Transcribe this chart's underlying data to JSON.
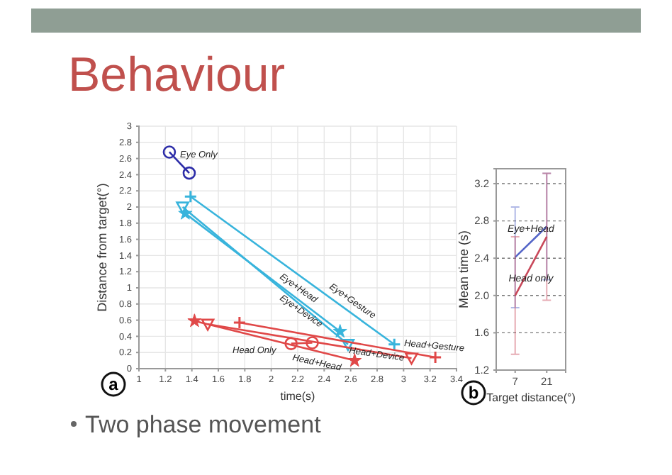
{
  "chart_data": [
    {
      "type": "line",
      "title": "Behaviour",
      "xlabel": "time(s)",
      "ylabel": "Distance from target(°)",
      "xlim": [
        1,
        3.4
      ],
      "xticks": [
        1,
        1.2,
        1.4,
        1.6,
        1.8,
        2,
        2.2,
        2.4,
        2.6,
        2.8,
        3,
        3.2,
        3.4
      ],
      "ylim": [
        0,
        3
      ],
      "yticks": [
        0,
        0.2,
        0.4,
        0.6,
        0.8,
        1,
        1.2,
        1.4,
        1.6,
        1.8,
        2,
        2.2,
        2.4,
        2.6,
        2.8,
        3
      ],
      "grid": true,
      "series": [
        {
          "color": "#2c2ca8",
          "marker": "circle",
          "x": [
            1.23,
            1.38
          ],
          "values": [
            2.68,
            2.42
          ]
        },
        {
          "color": "#38b4dc",
          "marker": "star",
          "x": [
            1.35,
            2.52
          ],
          "values": [
            1.92,
            0.46
          ]
        },
        {
          "color": "#38b4dc",
          "marker": "triangle",
          "x": [
            1.33,
            2.58
          ],
          "values": [
            2.0,
            0.3
          ]
        },
        {
          "color": "#38b4dc",
          "marker": "cross",
          "x": [
            1.39,
            2.93
          ],
          "values": [
            2.13,
            0.3
          ]
        },
        {
          "color": "#e04848",
          "marker": "circle",
          "x": [
            2.15,
            2.31
          ],
          "values": [
            0.31,
            0.32
          ]
        },
        {
          "color": "#e04848",
          "marker": "star",
          "x": [
            1.42,
            2.63
          ],
          "values": [
            0.59,
            0.1
          ]
        },
        {
          "color": "#e04848",
          "marker": "triangle",
          "x": [
            1.52,
            3.06
          ],
          "values": [
            0.55,
            0.13
          ]
        },
        {
          "color": "#e04848",
          "marker": "cross",
          "x": [
            1.76,
            3.24
          ],
          "values": [
            0.57,
            0.14
          ]
        }
      ],
      "annotations": [
        "a",
        "Two phase movement",
        "Eye Only",
        "Eye+Head",
        "Eye+Device",
        "Eye+Gesture",
        "Head Only",
        "Head+Head",
        "Head+Device",
        "Head+Gesture"
      ]
    },
    {
      "type": "line",
      "xlabel": "Target distance(°)",
      "ylabel": "Mean time (s)",
      "categories": [
        "7",
        "21"
      ],
      "ylim": [
        1.2,
        3.36
      ],
      "yticks": [
        1.2,
        1.6,
        {
          "value": 2,
          "label": "2.0"
        },
        2.4,
        2.8,
        3.2
      ],
      "grid": "y",
      "marker": "none",
      "series": [
        {
          "name": "Eye+Head",
          "color": "#5566c8",
          "values": [
            2.41,
            2.74
          ],
          "errors": [
            0.54,
            0.57
          ]
        },
        {
          "name": "Head only",
          "color": "#c8485a",
          "values": [
            2.0,
            2.63
          ],
          "errors": [
            0.63,
            0.68
          ]
        }
      ],
      "annotations": [
        "b"
      ]
    }
  ]
}
